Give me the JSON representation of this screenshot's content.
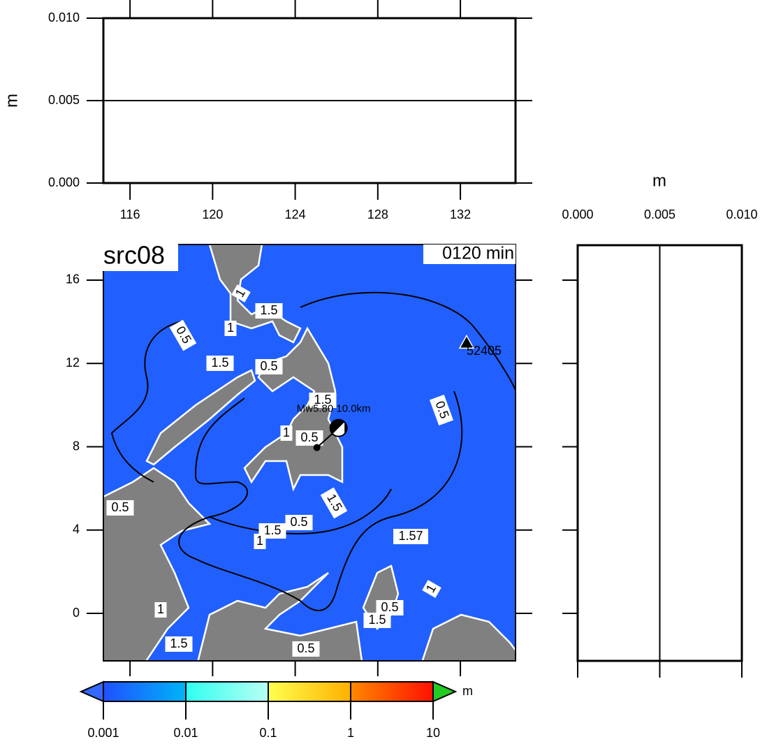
{
  "top_panel": {
    "ylabel": "m",
    "ylim": [
      0,
      0.01
    ],
    "yticks": [
      {
        "value": 0,
        "label": "0.000"
      },
      {
        "value": 0.005,
        "label": "0.005"
      },
      {
        "value": 0.01,
        "label": "0.010"
      }
    ],
    "xlim": [
      114.71,
      134.67
    ],
    "xticks": [
      116,
      120,
      124,
      128,
      132
    ]
  },
  "map": {
    "title": "src08",
    "time_label": "0120 min",
    "xlim": [
      114.71,
      134.67
    ],
    "ylim": [
      -2.28,
      17.71
    ],
    "xticks": [
      116,
      120,
      124,
      128,
      132
    ],
    "yticks": [
      0,
      4,
      8,
      12,
      16
    ],
    "station": {
      "name": "52405",
      "lon": 132.3,
      "lat": 13.0
    },
    "epicenter": {
      "label": "Mw5.80  10.0km",
      "lon": 126.1,
      "lat": 8.9
    },
    "contour_labels": [
      "1",
      "1.5",
      "0.5",
      "1",
      "1.5",
      "0.5",
      "1.5",
      "0.5",
      "1",
      "0.5",
      "0.5",
      "1.5",
      "1.5",
      "0.5",
      "1",
      "1.57",
      "1",
      "0.5",
      "1.5",
      "1",
      "1.5",
      "0.5"
    ]
  },
  "side_panel": {
    "xlabel": "m",
    "xlim": [
      0,
      0.01
    ],
    "xticks": [
      {
        "value": 0,
        "label": "0.000"
      },
      {
        "value": 0.005,
        "label": "0.005"
      },
      {
        "value": 0.01,
        "label": "0.010"
      }
    ]
  },
  "colorbar": {
    "unit": "m",
    "scale": "log",
    "ticks": [
      0.001,
      0.01,
      0.1,
      1,
      10
    ],
    "colors": [
      [
        "#2050ff",
        "#00b4f8"
      ],
      [
        "#30fff0",
        "#b8fff4"
      ],
      [
        "#ffff50",
        "#ffb000"
      ],
      [
        "#ff8800",
        "#ff1000"
      ]
    ],
    "under_color": "#3468ff",
    "over_color": "#22cc22"
  }
}
